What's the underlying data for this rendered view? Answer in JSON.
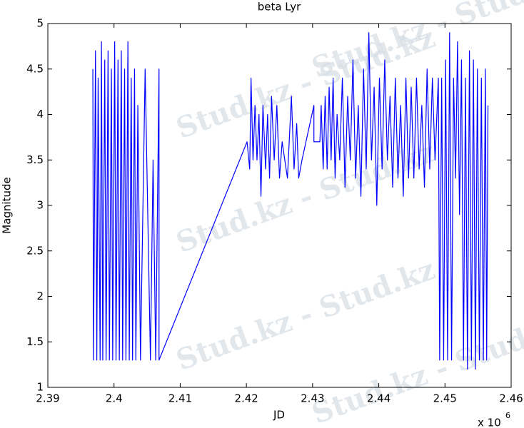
{
  "chart_data": {
    "type": "line",
    "title": "beta Lyr",
    "xlabel": "JD",
    "ylabel": "Magnitude",
    "x_scale_label": "x 10",
    "x_scale_exponent": "6",
    "watermark": "Stud.kz - Stud.kz",
    "xlim": [
      2.39,
      2.46
    ],
    "xticks": [
      2.39,
      2.4,
      2.41,
      2.42,
      2.43,
      2.44,
      2.45,
      2.46
    ],
    "ylim": [
      1,
      5
    ],
    "yticks": [
      1,
      1.5,
      2,
      2.5,
      3,
      3.5,
      4,
      4.5,
      5
    ],
    "series": [
      {
        "color": "#0000ff",
        "x": [
          2.3968,
          2.3969,
          2.3972,
          2.3974,
          2.3976,
          2.3979,
          2.3981,
          2.3983,
          2.3986,
          2.3988,
          2.3991,
          2.3993,
          2.3996,
          2.3998,
          2.4001,
          2.4003,
          2.4006,
          2.4008,
          2.4011,
          2.4013,
          2.4016,
          2.4018,
          2.4021,
          2.4023,
          2.4026,
          2.4028,
          2.4031,
          2.4033,
          2.4036,
          2.404,
          2.4047,
          2.4055,
          2.4059,
          2.4063,
          2.4068,
          2.4068,
          2.4201,
          2.4205,
          2.4207,
          2.421,
          2.4213,
          2.4216,
          2.4219,
          2.4222,
          2.4225,
          2.4229,
          2.4232,
          2.4235,
          2.4238,
          2.4242,
          2.4246,
          2.425,
          2.4254,
          2.4262,
          2.4268,
          2.4272,
          2.4276,
          2.4279,
          2.4284,
          2.4302,
          2.4302,
          2.4311,
          2.4313,
          2.4316,
          2.4319,
          2.4322,
          2.4325,
          2.4328,
          2.4331,
          2.4334,
          2.4337,
          2.4341,
          2.4345,
          2.4349,
          2.4353,
          2.4357,
          2.4361,
          2.4365,
          2.4369,
          2.4373,
          2.4377,
          2.4381,
          2.4385,
          2.4389,
          2.4393,
          2.4397,
          2.4401,
          2.4405,
          2.4409,
          2.4413,
          2.4417,
          2.4421,
          2.4425,
          2.4429,
          2.4433,
          2.4437,
          2.4441,
          2.4445,
          2.4449,
          2.4453,
          2.4457,
          2.4461,
          2.4465,
          2.4469,
          2.4473,
          2.4477,
          2.4481,
          2.4485,
          2.449,
          2.4492,
          2.4495,
          2.4498,
          2.4501,
          2.4504,
          2.4507,
          2.451,
          2.4513,
          2.4516,
          2.4519,
          2.4522,
          2.4525,
          2.4528,
          2.4531,
          2.4534,
          2.4537,
          2.454,
          2.4543,
          2.4546,
          2.4549,
          2.4552,
          2.4555,
          2.4558,
          2.4561,
          2.4563,
          2.4565
        ],
        "values": [
          4.5,
          1.3,
          4.7,
          1.3,
          4.4,
          1.3,
          4.8,
          1.3,
          4.6,
          1.3,
          4.7,
          1.3,
          4.5,
          1.3,
          4.8,
          1.3,
          4.6,
          1.3,
          4.7,
          1.3,
          4.5,
          1.3,
          4.8,
          1.3,
          4.4,
          1.3,
          4.5,
          1.3,
          4.1,
          1.3,
          4.5,
          1.3,
          3.5,
          1.3,
          4.5,
          1.3,
          3.7,
          3.4,
          4.4,
          3.5,
          4.1,
          3.5,
          4.0,
          3.1,
          4.1,
          3.4,
          4.0,
          3.3,
          4.2,
          3.5,
          4.1,
          3.3,
          3.7,
          3.3,
          4.2,
          3.4,
          3.9,
          3.3,
          3.5,
          4.1,
          3.7,
          3.7,
          4.1,
          3.4,
          4.2,
          3.4,
          4.3,
          3.5,
          4.4,
          3.3,
          4.0,
          3.5,
          4.4,
          3.2,
          4.2,
          3.5,
          4.6,
          3.3,
          4.1,
          3.1,
          4.5,
          3.4,
          4.9,
          3.5,
          4.3,
          3.0,
          4.4,
          3.4,
          4.6,
          3.5,
          4.2,
          3.2,
          4.4,
          3.3,
          4.1,
          3.1,
          4.4,
          3.3,
          4.3,
          3.3,
          4.4,
          3.4,
          4.1,
          3.2,
          4.5,
          3.4,
          4.4,
          3.5,
          4.4,
          1.3,
          4.4,
          1.3,
          4.6,
          1.3,
          4.9,
          1.3,
          4.4,
          3.3,
          4.8,
          2.9,
          4.6,
          1.3,
          4.4,
          1.2,
          4.7,
          1.3,
          4.6,
          1.2,
          4.5,
          1.3,
          4.4,
          1.3,
          4.5,
          1.3,
          4.1
        ]
      }
    ]
  }
}
